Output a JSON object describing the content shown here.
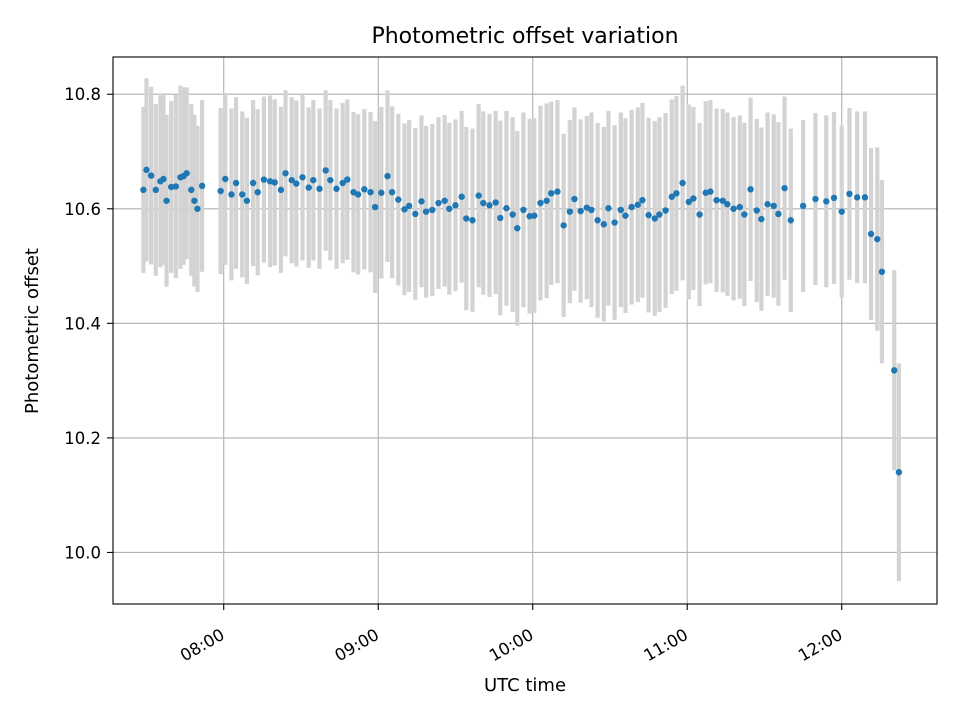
{
  "chart_data": {
    "type": "scatter",
    "title": "Photometric offset variation",
    "xlabel": "UTC time",
    "ylabel": "Photometric offset",
    "x_tick_labels": [
      "08:00",
      "09:00",
      "10:00",
      "11:00",
      "12:00"
    ],
    "x_tick_values": [
      8.0,
      9.0,
      10.0,
      11.0,
      12.0
    ],
    "y_tick_labels": [
      "10.0",
      "10.2",
      "10.4",
      "10.6",
      "10.8"
    ],
    "y_tick_values": [
      10.0,
      10.2,
      10.4,
      10.6,
      10.8
    ],
    "xlim": [
      "07:17",
      "12:37"
    ],
    "ylim": [
      9.91,
      10.865
    ],
    "grid": true,
    "colors": {
      "points": "#1f77b4",
      "error_bars": "#d3d3d3"
    },
    "series": [
      {
        "x_hours": [
          7.48,
          7.5,
          7.53,
          7.56,
          7.59,
          7.61,
          7.63,
          7.66,
          7.69,
          7.72,
          7.74,
          7.76,
          7.79,
          7.81,
          7.83,
          7.86,
          7.98,
          8.01,
          8.05,
          8.08,
          8.12,
          8.15,
          8.19,
          8.22,
          8.26,
          8.3,
          8.33,
          8.37,
          8.4,
          8.44,
          8.47,
          8.51,
          8.55,
          8.58,
          8.62,
          8.66,
          8.69,
          8.73,
          8.77,
          8.8,
          8.84,
          8.87,
          8.91,
          8.95,
          8.98,
          9.02,
          9.06,
          9.09,
          9.13,
          9.17,
          9.2,
          9.24,
          9.28,
          9.31,
          9.35,
          9.39,
          9.43,
          9.46,
          9.5,
          9.54,
          9.57,
          9.61,
          9.65,
          9.68,
          9.72,
          9.76,
          9.79,
          9.83,
          9.87,
          9.9,
          9.94,
          9.98,
          10.01,
          10.05,
          10.09,
          10.12,
          10.16,
          10.2,
          10.24,
          10.27,
          10.31,
          10.35,
          10.38,
          10.42,
          10.46,
          10.49,
          10.53,
          10.57,
          10.6,
          10.64,
          10.68,
          10.71,
          10.75,
          10.79,
          10.82,
          10.86,
          10.9,
          10.93,
          10.97,
          11.01,
          11.04,
          11.08,
          11.12,
          11.15,
          11.19,
          11.23,
          11.26,
          11.3,
          11.34,
          11.37,
          11.41,
          11.45,
          11.48,
          11.52,
          11.56,
          11.59,
          11.63,
          11.67,
          11.75,
          11.83,
          11.9,
          11.95,
          12.0,
          12.05,
          12.1,
          12.15,
          12.19,
          12.23,
          12.26,
          12.34,
          12.37
        ],
        "y": [
          10.633,
          10.668,
          10.658,
          10.633,
          10.648,
          10.652,
          10.614,
          10.638,
          10.639,
          10.655,
          10.657,
          10.662,
          10.633,
          10.614,
          10.6,
          10.64,
          10.631,
          10.652,
          10.625,
          10.645,
          10.625,
          10.614,
          10.645,
          10.629,
          10.651,
          10.648,
          10.646,
          10.633,
          10.662,
          10.65,
          10.644,
          10.655,
          10.637,
          10.65,
          10.635,
          10.667,
          10.65,
          10.635,
          10.645,
          10.651,
          10.629,
          10.625,
          10.634,
          10.629,
          10.603,
          10.628,
          10.657,
          10.629,
          10.616,
          10.599,
          10.605,
          10.591,
          10.613,
          10.595,
          10.598,
          10.61,
          10.614,
          10.6,
          10.606,
          10.621,
          10.583,
          10.58,
          10.623,
          10.61,
          10.606,
          10.611,
          10.584,
          10.601,
          10.59,
          10.566,
          10.598,
          10.587,
          10.588,
          10.61,
          10.614,
          10.627,
          10.63,
          10.571,
          10.595,
          10.617,
          10.596,
          10.602,
          10.598,
          10.58,
          10.573,
          10.601,
          10.576,
          10.598,
          10.588,
          10.603,
          10.607,
          10.615,
          10.589,
          10.583,
          10.59,
          10.597,
          10.621,
          10.627,
          10.645,
          10.612,
          10.618,
          10.59,
          10.628,
          10.63,
          10.615,
          10.614,
          10.608,
          10.6,
          10.603,
          10.59,
          10.634,
          10.597,
          10.582,
          10.608,
          10.605,
          10.591,
          10.636,
          10.58,
          10.605,
          10.617,
          10.613,
          10.619,
          10.595,
          10.626,
          10.62,
          10.62,
          10.556,
          10.547,
          10.49,
          10.318,
          10.14
        ],
        "error": [
          0.145,
          0.16,
          0.155,
          0.15,
          0.15,
          0.15,
          0.15,
          0.15,
          0.16,
          0.16,
          0.155,
          0.15,
          0.15,
          0.15,
          0.145,
          0.15,
          0.145,
          0.15,
          0.15,
          0.15,
          0.145,
          0.145,
          0.145,
          0.145,
          0.145,
          0.15,
          0.145,
          0.145,
          0.145,
          0.145,
          0.145,
          0.145,
          0.14,
          0.14,
          0.14,
          0.14,
          0.14,
          0.14,
          0.14,
          0.14,
          0.14,
          0.14,
          0.14,
          0.14,
          0.15,
          0.15,
          0.15,
          0.15,
          0.15,
          0.15,
          0.15,
          0.15,
          0.15,
          0.15,
          0.15,
          0.15,
          0.15,
          0.15,
          0.15,
          0.15,
          0.16,
          0.16,
          0.16,
          0.16,
          0.16,
          0.16,
          0.17,
          0.17,
          0.17,
          0.17,
          0.17,
          0.17,
          0.17,
          0.17,
          0.17,
          0.16,
          0.16,
          0.16,
          0.16,
          0.16,
          0.16,
          0.16,
          0.17,
          0.17,
          0.17,
          0.17,
          0.17,
          0.17,
          0.17,
          0.17,
          0.17,
          0.17,
          0.17,
          0.17,
          0.17,
          0.17,
          0.17,
          0.17,
          0.17,
          0.17,
          0.16,
          0.16,
          0.16,
          0.16,
          0.16,
          0.16,
          0.16,
          0.16,
          0.16,
          0.16,
          0.16,
          0.16,
          0.16,
          0.16,
          0.16,
          0.16,
          0.16,
          0.16,
          0.15,
          0.15,
          0.15,
          0.15,
          0.15,
          0.15,
          0.15,
          0.15,
          0.15,
          0.16,
          0.16,
          0.175,
          0.19
        ]
      }
    ]
  }
}
